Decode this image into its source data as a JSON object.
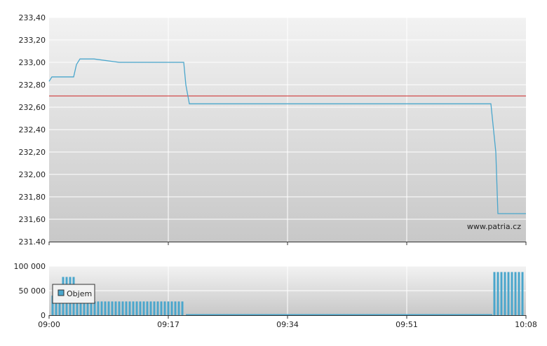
{
  "chart_data": [
    {
      "type": "line",
      "title": "",
      "xlabel": "",
      "ylabel": "",
      "x_ticks": [
        "09:00",
        "09:17",
        "09:34",
        "09:51",
        "10:08"
      ],
      "y_ticks": [
        "231.40",
        "231,60",
        "231,80",
        "232,00",
        "232,20",
        "232,40",
        "232,60",
        "232,80",
        "233,00",
        "233,20",
        "233,40"
      ],
      "ylim": [
        231.4,
        233.4
      ],
      "xlim_minutes": [
        0,
        68
      ],
      "grid": true,
      "watermark": "www.patria.cz",
      "reference_line": {
        "value": 232.7,
        "color": "#cc2222"
      },
      "series": [
        {
          "color": "#4aa6cc",
          "x": [
            0.0,
            0.4,
            1.5,
            2.0,
            3.5,
            3.9,
            4.4,
            5.0,
            5.6,
            6.0,
            6.4,
            10.0,
            15.0,
            19.0,
            19.2,
            19.5,
            20.0,
            30.0,
            40.0,
            50.0,
            60.0,
            63.0,
            63.7,
            64.0,
            65.0,
            68.0
          ],
          "y": [
            232.83,
            232.87,
            232.87,
            232.87,
            232.87,
            232.98,
            233.03,
            233.03,
            233.03,
            233.03,
            233.03,
            233.0,
            233.0,
            233.0,
            233.0,
            232.8,
            232.63,
            232.63,
            232.63,
            232.63,
            232.63,
            232.63,
            232.2,
            231.65,
            231.65,
            231.65
          ]
        }
      ]
    },
    {
      "type": "bar",
      "x_ticks": [
        "09:00",
        "09:17",
        "09:34",
        "09:51",
        "10:08"
      ],
      "y_ticks": [
        "0",
        "50 000",
        "100 000"
      ],
      "ylim": [
        0,
        100000
      ],
      "legend": {
        "label": "Objem",
        "position": "top-left"
      },
      "series": [
        {
          "name": "Objem",
          "color": "#4aa6cc",
          "x": [
            0.5,
            1.0,
            1.5,
            2.0,
            2.5,
            3.0,
            3.5,
            4.0,
            4.5,
            5.0,
            5.5,
            6.0,
            6.5,
            7.0,
            7.5,
            8.0,
            8.5,
            9.0,
            9.5,
            10.0,
            10.5,
            11.0,
            11.5,
            12.0,
            12.5,
            13.0,
            13.5,
            14.0,
            14.5,
            15.0,
            15.5,
            16.0,
            16.5,
            17.0,
            17.5,
            18.0,
            18.5,
            19.0,
            63.5,
            64.0,
            64.5,
            65.0,
            65.5,
            66.0,
            66.5,
            67.0,
            67.5
          ],
          "values": [
            40000,
            40000,
            40000,
            78000,
            78000,
            78000,
            78000,
            28000,
            28000,
            28000,
            28000,
            28000,
            28000,
            28000,
            28000,
            28000,
            28000,
            28000,
            28000,
            28000,
            28000,
            28000,
            28000,
            28000,
            28000,
            28000,
            28000,
            28000,
            28000,
            28000,
            28000,
            28000,
            28000,
            28000,
            28000,
            28000,
            28000,
            28000,
            88000,
            88000,
            88000,
            88000,
            88000,
            88000,
            88000,
            88000,
            88000
          ]
        }
      ]
    }
  ]
}
